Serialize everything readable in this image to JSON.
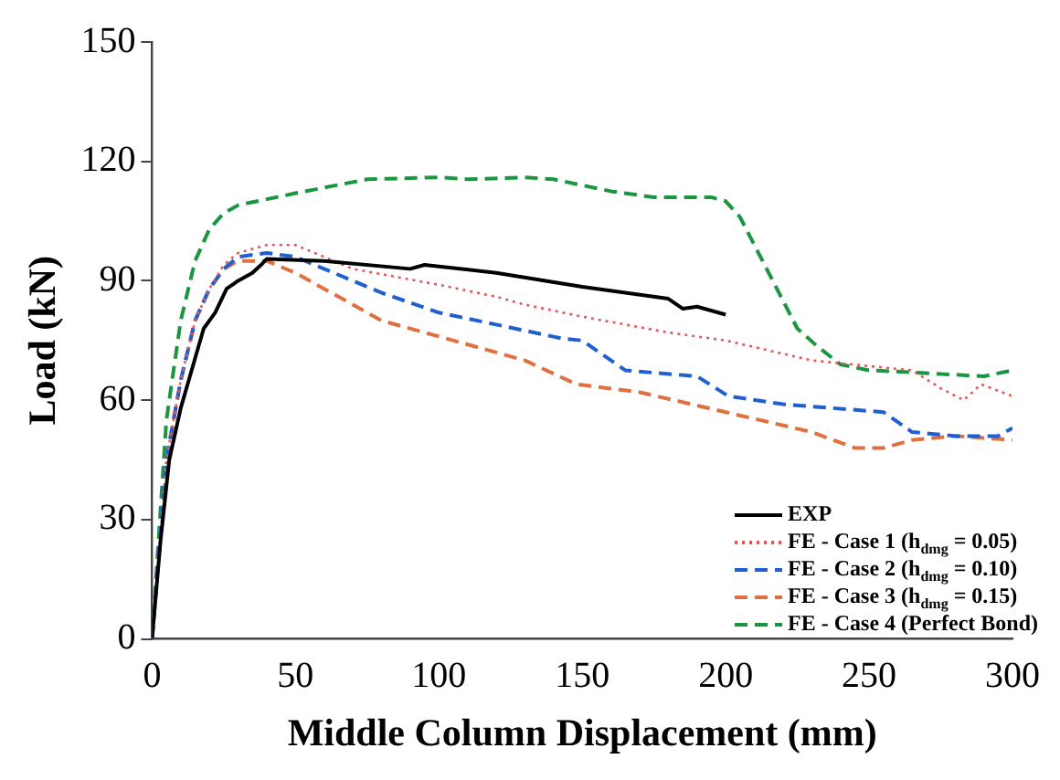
{
  "chart_data": {
    "type": "line",
    "xlabel": "Middle Column Displacement (mm)",
    "ylabel": "Load (kN)",
    "xlim": [
      0,
      300
    ],
    "xticks": [
      0,
      50,
      100,
      150,
      200,
      250,
      300
    ],
    "ylim": [
      0,
      150
    ],
    "yticks": [
      0,
      30,
      60,
      90,
      120,
      150
    ],
    "grid": false,
    "legend": "bottom right",
    "marker": "none",
    "series": [
      {
        "name": "EXP",
        "color": "#000000",
        "line_style": "solid",
        "x": [
          0,
          3,
          6,
          10,
          14,
          18,
          22,
          26,
          30,
          35,
          38,
          40,
          60,
          90,
          95,
          120,
          150,
          180,
          185,
          190,
          200
        ],
        "values": [
          0,
          25,
          45,
          58,
          68,
          78,
          82,
          88,
          90,
          92,
          94,
          95.5,
          95,
          93,
          94,
          92,
          88.5,
          85.5,
          83,
          83.5,
          81.5
        ]
      },
      {
        "name": "FE - Case 1 (h$_{dmg}$ = 0.05)",
        "color": "#e05a5a",
        "line_style": "dotted",
        "x": [
          0,
          5,
          10,
          15,
          20,
          25,
          30,
          40,
          50,
          60,
          70,
          100,
          120,
          130,
          150,
          180,
          200,
          230,
          265,
          275,
          283,
          289,
          300
        ],
        "values": [
          0,
          45,
          65,
          80,
          88,
          94,
          97,
          99,
          99,
          96,
          93,
          89,
          86,
          84,
          81,
          77,
          75,
          70,
          67.5,
          63,
          60,
          64,
          61
        ]
      },
      {
        "name": "FE - Case 2 (h$_{dmg}$ = 0.10)",
        "color": "#1f5fd0",
        "line_style": "dashed",
        "x": [
          0,
          5,
          10,
          15,
          20,
          25,
          30,
          40,
          50,
          60,
          80,
          100,
          120,
          143,
          150,
          165,
          190,
          201,
          220,
          255,
          265,
          280,
          295,
          300
        ],
        "values": [
          0,
          45,
          65,
          80,
          88,
          93,
          96,
          97,
          96,
          93,
          87,
          82,
          79,
          75.5,
          75,
          67.5,
          66,
          61,
          59,
          57,
          52,
          51,
          51,
          53
        ]
      },
      {
        "name": "FE - Case 3 (h$_{dmg}$ = 0.15)",
        "color": "#e07040",
        "line_style": "dashed",
        "x": [
          0,
          5,
          10,
          15,
          20,
          25,
          30,
          40,
          50,
          60,
          80,
          100,
          130,
          148,
          170,
          200,
          230,
          245,
          255,
          265,
          280,
          300
        ],
        "values": [
          0,
          45,
          65,
          80,
          88,
          93,
          95,
          95,
          92,
          88,
          80,
          76,
          70,
          64,
          62,
          57,
          52,
          48,
          48,
          50,
          51,
          50
        ]
      },
      {
        "name": "FE - Case 4 (Perfect Bond)",
        "color": "#1a9641",
        "line_style": "dashed",
        "x": [
          0,
          5,
          10,
          15,
          20,
          25,
          30,
          50,
          75,
          100,
          110,
          130,
          140,
          160,
          175,
          195,
          200,
          205,
          215,
          225,
          232,
          240,
          250,
          265,
          290,
          300
        ],
        "values": [
          0,
          55,
          80,
          95,
          103,
          107,
          109,
          112,
          115.5,
          116,
          115.5,
          116,
          115.5,
          112.5,
          111,
          111,
          110,
          106,
          92,
          78,
          73.5,
          69,
          67.5,
          67,
          66,
          67.5
        ]
      }
    ]
  }
}
